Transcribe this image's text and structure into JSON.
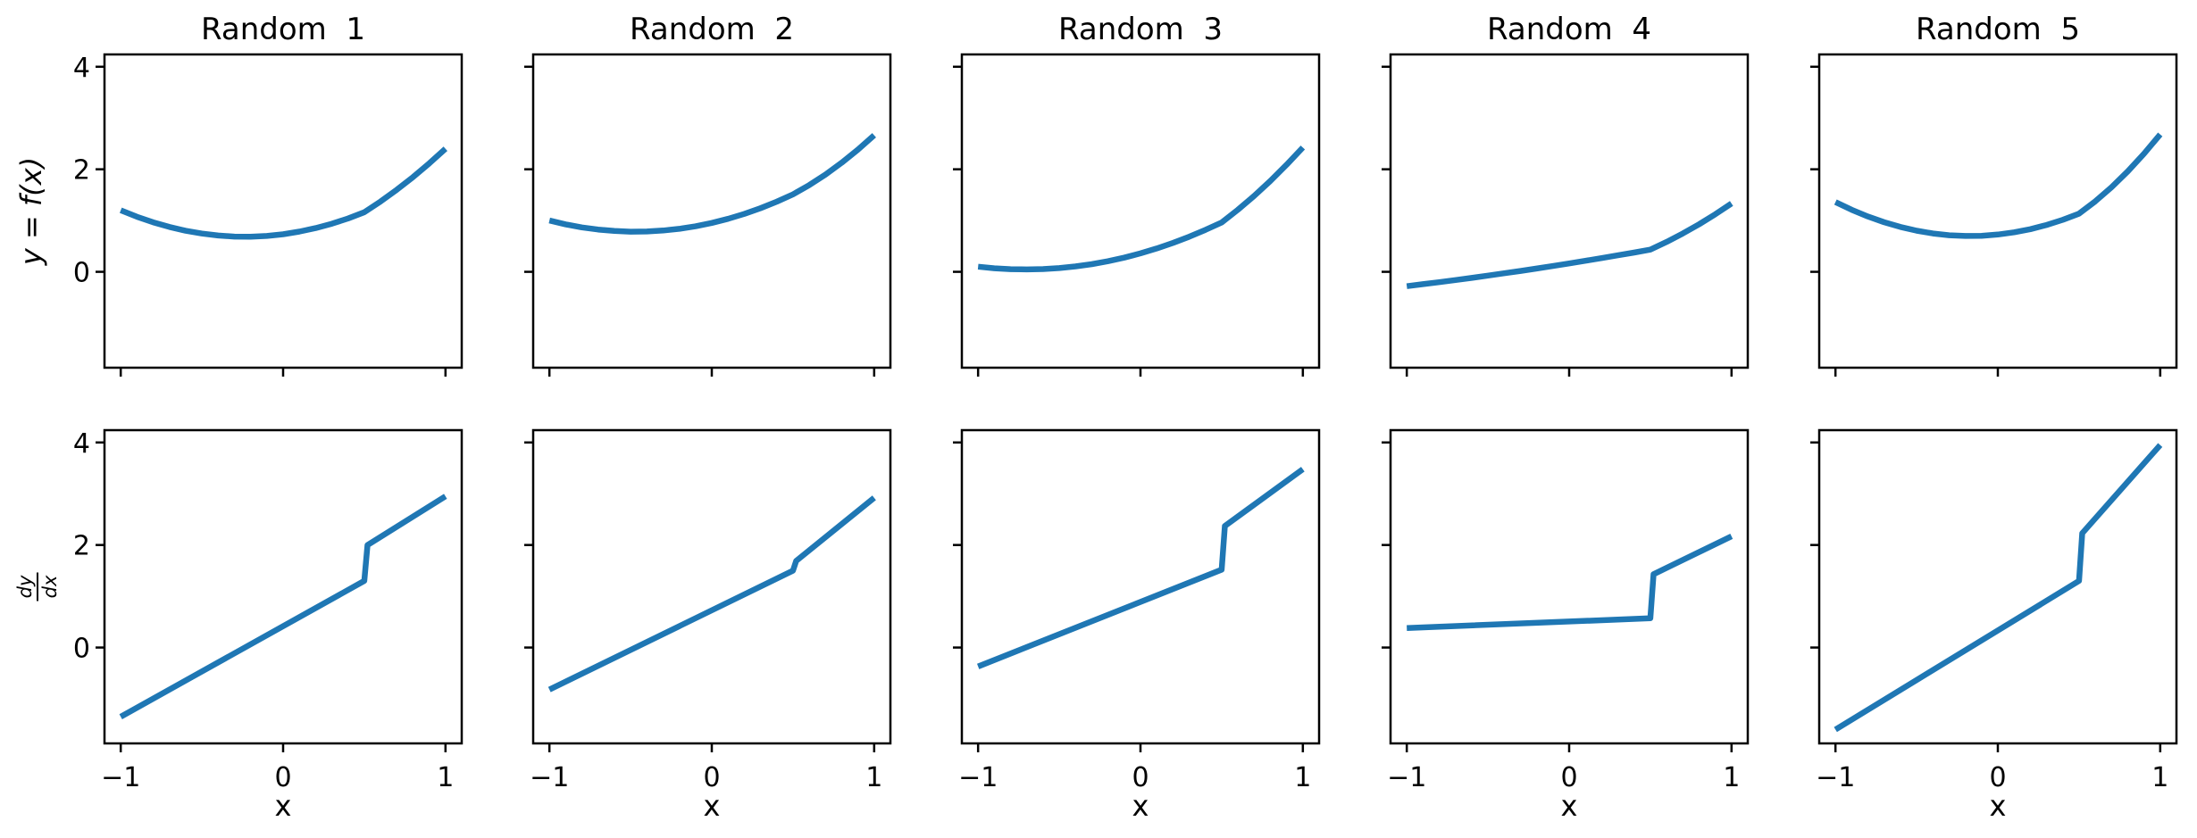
{
  "figure": {
    "background": "#ffffff",
    "axis_color": "#000000",
    "line_color": "#1f77b4"
  },
  "chart_data": {
    "type": "line",
    "layout": "2 rows x 5 columns, shared axes",
    "xlabel": "x",
    "row1_ylabel": "y = f(x)",
    "row2_ylabel_num": "dy",
    "row2_ylabel_den": "dx",
    "xlim": [
      -1.1,
      1.1
    ],
    "ylim": [
      -1.87,
      4.24
    ],
    "x_ticks": [
      -1,
      0,
      1
    ],
    "y_ticks": [
      0,
      2,
      4
    ],
    "x_tick_labels": [
      "−1",
      "0",
      "1"
    ],
    "y_tick_labels": [
      "0",
      "2",
      "4"
    ],
    "grid": false,
    "legend": "none",
    "columns": [
      {
        "title": "Random  1",
        "f": {
          "x": [
            -1.0,
            -0.9,
            -0.8,
            -0.7,
            -0.6,
            -0.5,
            -0.4,
            -0.3,
            -0.2,
            -0.1,
            0.0,
            0.1,
            0.2,
            0.3,
            0.4,
            0.5,
            0.6,
            0.7,
            0.8,
            0.9,
            1.0
          ],
          "y": [
            1.2,
            1.074,
            0.965,
            0.875,
            0.801,
            0.746,
            0.708,
            0.688,
            0.685,
            0.7,
            0.733,
            0.784,
            0.852,
            0.938,
            1.041,
            1.163,
            1.372,
            1.601,
            1.848,
            2.115,
            2.4
          ]
        },
        "dfdx": {
          "x": [
            -1.0,
            0.5,
            0.52,
            1.0
          ],
          "y": [
            -1.35,
            1.3,
            2.0,
            2.95
          ]
        }
      },
      {
        "title": "Random  2",
        "f": {
          "x": [
            -1.0,
            -0.9,
            -0.8,
            -0.7,
            -0.6,
            -0.5,
            -0.4,
            -0.3,
            -0.2,
            -0.1,
            0.0,
            0.1,
            0.2,
            0.3,
            0.4,
            0.5,
            0.6,
            0.7,
            0.8,
            0.9,
            1.0
          ],
          "y": [
            1.0,
            0.926,
            0.867,
            0.824,
            0.796,
            0.783,
            0.786,
            0.805,
            0.839,
            0.888,
            0.953,
            1.034,
            1.13,
            1.241,
            1.368,
            1.51,
            1.691,
            1.897,
            2.128,
            2.383,
            2.663
          ]
        },
        "dfdx": {
          "x": [
            -1.0,
            0.5,
            0.52,
            1.0
          ],
          "y": [
            -0.82,
            1.5,
            1.69,
            2.92
          ]
        }
      },
      {
        "title": "Random  3",
        "f": {
          "x": [
            -1.0,
            -0.9,
            -0.8,
            -0.7,
            -0.6,
            -0.5,
            -0.4,
            -0.3,
            -0.2,
            -0.1,
            0.0,
            0.1,
            0.2,
            0.3,
            0.4,
            0.5,
            0.6,
            0.7,
            0.8,
            0.9,
            1.0
          ],
          "y": [
            0.1,
            0.069,
            0.051,
            0.046,
            0.053,
            0.073,
            0.105,
            0.15,
            0.207,
            0.277,
            0.36,
            0.455,
            0.563,
            0.684,
            0.817,
            0.963,
            1.211,
            1.481,
            1.773,
            2.088,
            2.425
          ]
        },
        "dfdx": {
          "x": [
            -1.0,
            0.5,
            0.52,
            1.0
          ],
          "y": [
            -0.37,
            1.52,
            2.37,
            3.48
          ]
        }
      },
      {
        "title": "Random  4",
        "f": {
          "x": [
            -1.0,
            -0.9,
            -0.8,
            -0.7,
            -0.6,
            -0.5,
            -0.4,
            -0.3,
            -0.2,
            -0.1,
            0.0,
            0.1,
            0.2,
            0.3,
            0.4,
            0.5,
            0.6,
            0.7,
            0.8,
            0.9,
            1.0
          ],
          "y": [
            -0.28,
            -0.241,
            -0.202,
            -0.16,
            -0.118,
            -0.074,
            -0.029,
            0.017,
            0.064,
            0.113,
            0.163,
            0.215,
            0.267,
            0.321,
            0.376,
            0.433,
            0.583,
            0.748,
            0.928,
            1.123,
            1.333
          ]
        },
        "dfdx": {
          "x": [
            -1.0,
            0.5,
            0.52,
            1.0
          ],
          "y": [
            0.38,
            0.57,
            1.43,
            2.17
          ]
        }
      },
      {
        "title": "Random  5",
        "f": {
          "x": [
            -1.0,
            -0.9,
            -0.8,
            -0.7,
            -0.6,
            -0.5,
            -0.4,
            -0.3,
            -0.2,
            -0.1,
            0.0,
            0.1,
            0.2,
            0.3,
            0.4,
            0.5,
            0.6,
            0.7,
            0.8,
            0.9,
            1.0
          ],
          "y": [
            1.36,
            1.21,
            1.079,
            0.967,
            0.875,
            0.802,
            0.748,
            0.714,
            0.699,
            0.703,
            0.727,
            0.77,
            0.832,
            0.914,
            1.015,
            1.135,
            1.375,
            1.65,
            1.959,
            2.302,
            2.68
          ]
        },
        "dfdx": {
          "x": [
            -1.0,
            0.5,
            0.52,
            1.0
          ],
          "y": [
            -1.6,
            1.3,
            2.23,
            3.95
          ]
        }
      }
    ]
  }
}
